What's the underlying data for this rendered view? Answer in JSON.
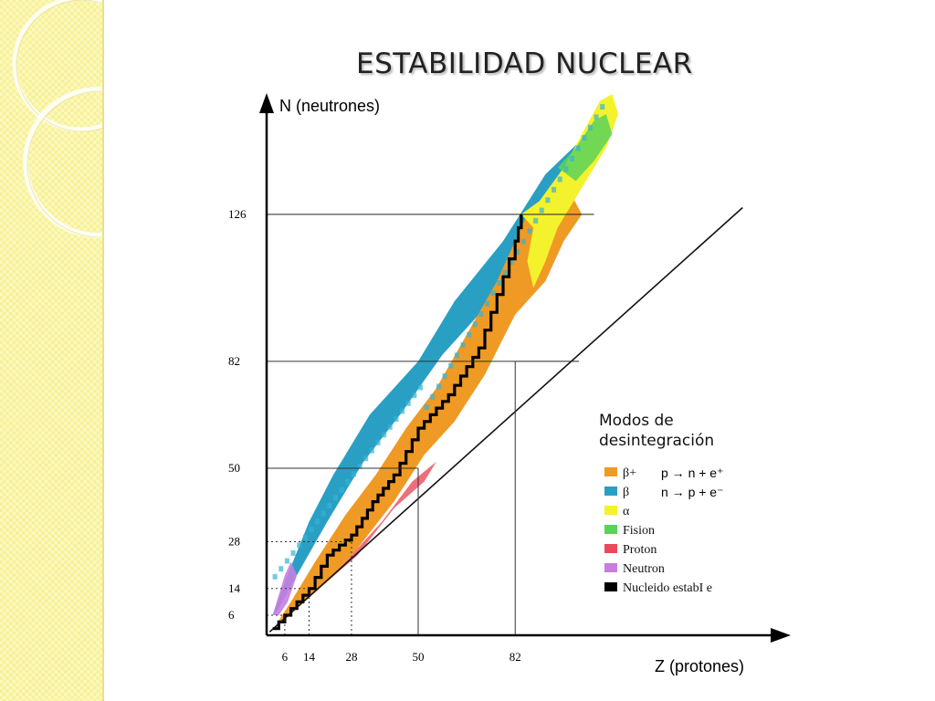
{
  "slide": {
    "title": "ESTABILIDAD NUCLEAR"
  },
  "chart_data": {
    "type": "heatmap",
    "title": "",
    "xlabel": "Z (protones)",
    "ylabel": "N (neutrones)",
    "x_ticks": [
      6,
      14,
      28,
      50,
      82
    ],
    "x_tick_labels": [
      "6",
      "14",
      "28",
      "50",
      "82"
    ],
    "y_ticks": [
      6,
      14,
      28,
      50,
      82,
      126
    ],
    "y_tick_labels": [
      "6",
      "14",
      "28",
      "50",
      "82",
      "126"
    ],
    "xlim": [
      0,
      110
    ],
    "ylim": [
      0,
      165
    ],
    "reference_line": "N = Z",
    "legend": {
      "title": "Modos de desintegración",
      "items": [
        {
          "key": "beta_plus",
          "label": "β+",
          "color": "#ef9a24"
        },
        {
          "key": "beta_minus",
          "label": "β",
          "color": "#2a9fc4"
        },
        {
          "key": "alpha",
          "label": "α",
          "color": "#f4f22c"
        },
        {
          "key": "fission",
          "label": "Fision",
          "color": "#5ad35a"
        },
        {
          "key": "proton",
          "label": "Proton",
          "color": "#ea4b5b"
        },
        {
          "key": "neutron",
          "label": "Neutron",
          "color": "#c77ee0"
        },
        {
          "key": "stable",
          "label": "Nucleido estabI e",
          "color": "#000000"
        }
      ]
    },
    "annotations": [
      {
        "label": "p → n + e⁺",
        "mode": "beta_plus"
      },
      {
        "label": "n → p + e⁻",
        "mode": "beta_minus"
      }
    ],
    "stable_line_points": [
      [
        2,
        2
      ],
      [
        6,
        6
      ],
      [
        14,
        14
      ],
      [
        20,
        24
      ],
      [
        28,
        30
      ],
      [
        35,
        40
      ],
      [
        42,
        48
      ],
      [
        50,
        62
      ],
      [
        60,
        72
      ],
      [
        70,
        86
      ],
      [
        82,
        118
      ],
      [
        84,
        126
      ]
    ]
  }
}
